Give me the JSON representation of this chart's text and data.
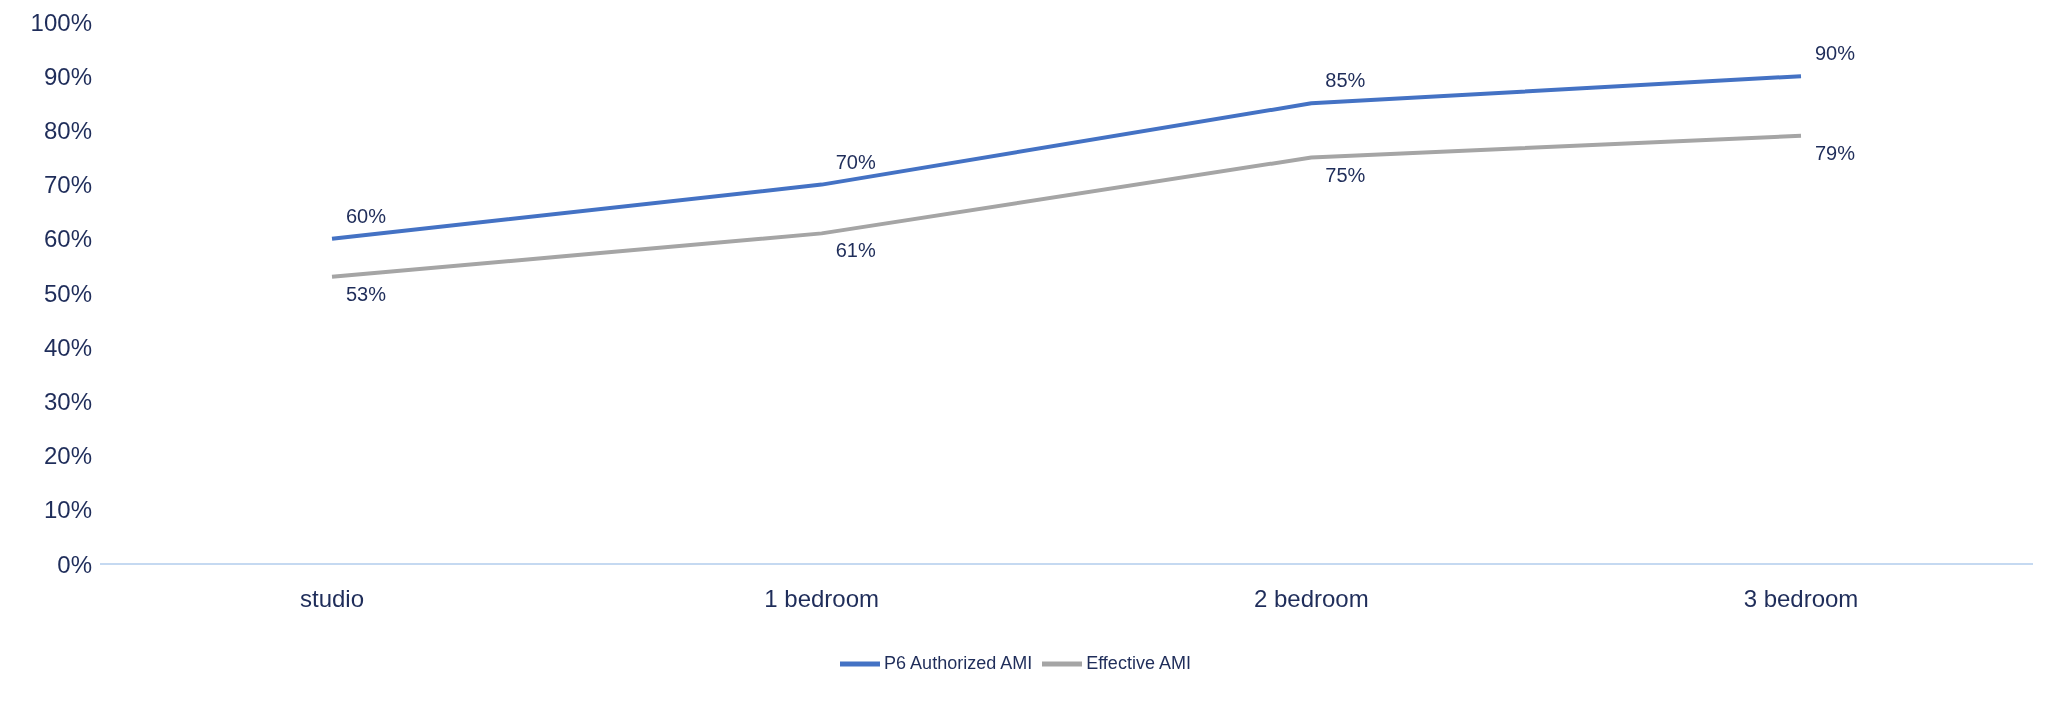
{
  "chart_data": {
    "type": "line",
    "categories": [
      "studio",
      "1 bedroom",
      "2 bedroom",
      "3 bedroom"
    ],
    "series": [
      {
        "name": "P6 Authorized AMI",
        "color": "#4472c4",
        "values": [
          60,
          70,
          85,
          90
        ],
        "value_labels": [
          "60%",
          "70%",
          "85%",
          "90%"
        ]
      },
      {
        "name": "Effective AMI",
        "color": "#a5a5a5",
        "values": [
          53,
          61,
          75,
          79
        ],
        "value_labels": [
          "53%",
          "61%",
          "75%",
          "79%"
        ]
      }
    ],
    "ylim": [
      0,
      100
    ],
    "yticks": [
      {
        "value": 0,
        "label": "0%"
      },
      {
        "value": 10,
        "label": "10%"
      },
      {
        "value": 20,
        "label": "20%"
      },
      {
        "value": 30,
        "label": "30%"
      },
      {
        "value": 40,
        "label": "40%"
      },
      {
        "value": 50,
        "label": "50%"
      },
      {
        "value": 60,
        "label": "60%"
      },
      {
        "value": 70,
        "label": "70%"
      },
      {
        "value": 80,
        "label": "80%"
      },
      {
        "value": 90,
        "label": "90%"
      },
      {
        "value": 100,
        "label": "100%"
      }
    ],
    "grid": false,
    "legend": "bottom",
    "marker": "none",
    "line_style": "solid"
  }
}
